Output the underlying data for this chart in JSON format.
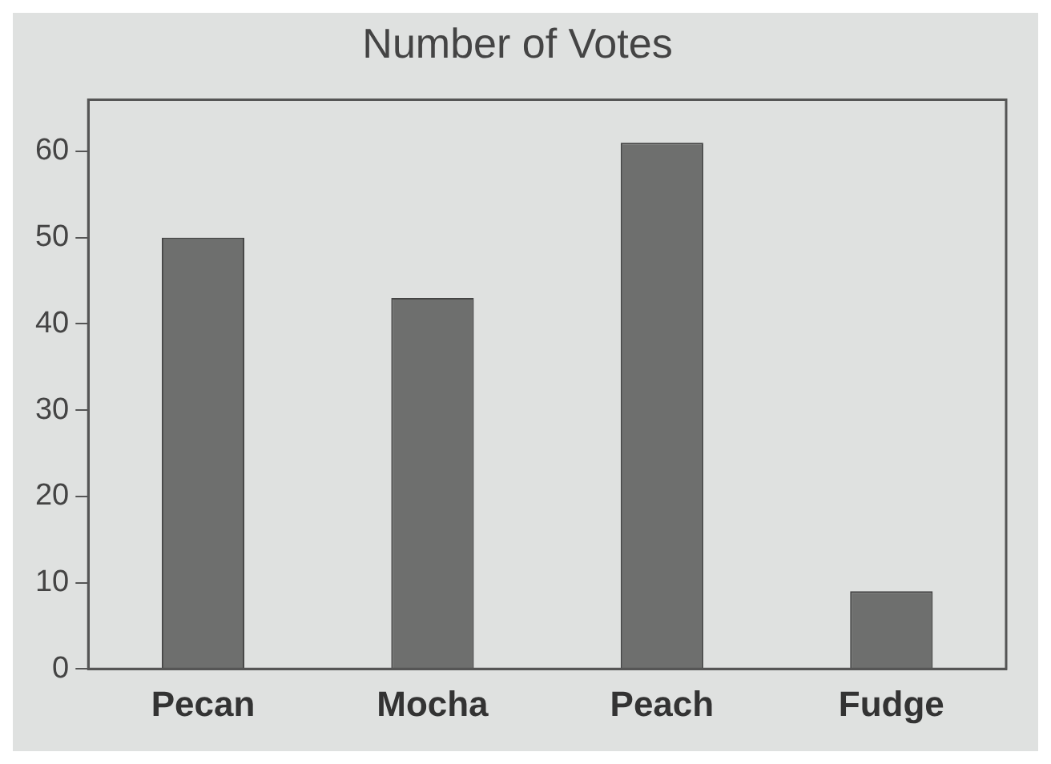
{
  "chart_data": {
    "type": "bar",
    "title": "Number of Votes",
    "categories": [
      "Pecan",
      "Mocha",
      "Peach",
      "Fudge"
    ],
    "values": [
      50,
      43,
      61,
      9
    ],
    "color": "#6e6f6e",
    "ylim": [
      0,
      66
    ],
    "yticks": [
      0,
      10,
      20,
      30,
      40,
      50,
      60
    ],
    "grid": false,
    "legend": false
  }
}
